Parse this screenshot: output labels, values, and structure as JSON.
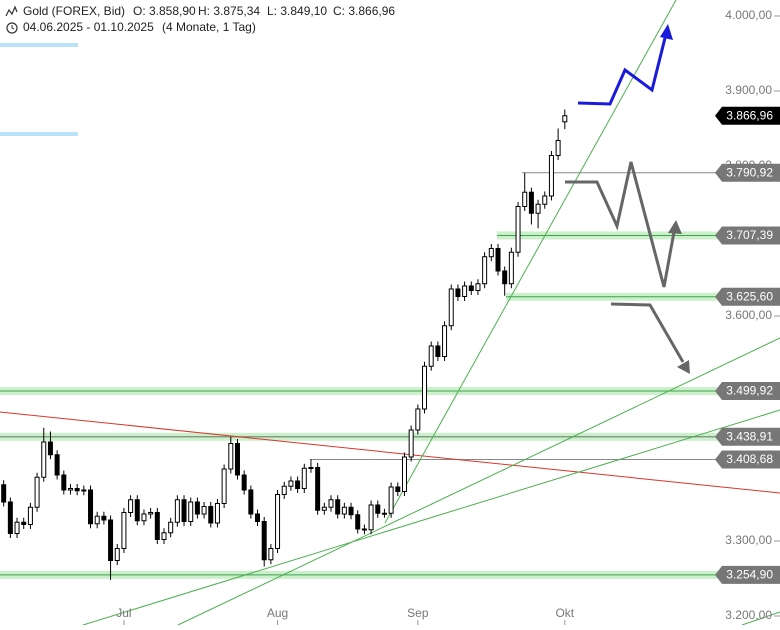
{
  "chart_data": {
    "type": "candlestick",
    "title": "Gold (FOREX, Bid)",
    "quote": [
      "O: 3.858,90",
      "H: 3.875,34",
      "L: 3.849,10",
      "C: 3.866,96"
    ],
    "date_range": "04.06.2025 - 01.10.2025",
    "period": "(4 Monate, 1 Tag)",
    "categories": [
      null,
      null,
      null,
      null,
      null,
      null,
      null,
      null,
      null,
      null,
      null,
      null,
      null,
      null,
      null,
      null,
      null,
      null,
      null,
      "Jul",
      null,
      null,
      null,
      null,
      null,
      null,
      null,
      null,
      null,
      null,
      null,
      null,
      null,
      null,
      null,
      null,
      null,
      null,
      null,
      null,
      null,
      null,
      "Aug",
      null,
      null,
      null,
      null,
      null,
      null,
      null,
      null,
      null,
      null,
      null,
      null,
      null,
      null,
      null,
      null,
      null,
      null,
      null,
      null,
      "Sep",
      null,
      null,
      null,
      null,
      null,
      null,
      null,
      null,
      null,
      null,
      null,
      null,
      null,
      null,
      null,
      null,
      null,
      null,
      null,
      null,
      null,
      "Okt"
    ],
    "open": [
      3390,
      3375,
      3352,
      3310,
      3325,
      3322,
      3345,
      3385,
      3432,
      3415,
      3388,
      3368,
      3370,
      3367,
      3368,
      3323,
      3333,
      3328,
      3274,
      3290,
      3338,
      3355,
      3327,
      3336,
      3338,
      3302,
      3311,
      3325,
      3355,
      3326,
      3352,
      3336,
      3346,
      3324,
      3350,
      3396,
      3430,
      3388,
      3368,
      3336,
      3326,
      3275,
      3290,
      3362,
      3373,
      3380,
      3370,
      3397,
      3398,
      3341,
      3345,
      3355,
      3336,
      3345,
      3335,
      3316,
      3315,
      3348,
      3337,
      3337,
      3372,
      3366,
      3412,
      3448,
      3476,
      3533,
      3560,
      3546,
      3587,
      3636,
      3626,
      3640,
      3634,
      3643,
      3679,
      3690,
      3660,
      3643,
      3685,
      3746,
      3765,
      3737,
      3749,
      3760,
      3814,
      3858.9
    ],
    "high": [
      3396,
      3381,
      3358,
      3331,
      3331,
      3351,
      3391,
      3451,
      3446,
      3421,
      3394,
      3376,
      3376,
      3374,
      3374,
      3339,
      3339,
      3334,
      3296,
      3344,
      3361,
      3361,
      3342,
      3344,
      3344,
      3317,
      3331,
      3361,
      3361,
      3358,
      3358,
      3352,
      3352,
      3356,
      3402,
      3439,
      3436,
      3394,
      3374,
      3342,
      3332,
      3296,
      3368,
      3379,
      3386,
      3386,
      3403,
      3409,
      3404,
      3351,
      3361,
      3361,
      3351,
      3351,
      3341,
      3322,
      3354,
      3354,
      3343,
      3378,
      3378,
      3418,
      3454,
      3482,
      3539,
      3566,
      3566,
      3593,
      3642,
      3642,
      3646,
      3646,
      3649,
      3685,
      3696,
      3696,
      3666,
      3691,
      3752,
      3791,
      3771,
      3755,
      3766,
      3820,
      3850,
      3875.34
    ],
    "low": [
      3369,
      3346,
      3304,
      3304,
      3316,
      3316,
      3339,
      3379,
      3409,
      3382,
      3362,
      3362,
      3361,
      3361,
      3317,
      3317,
      3322,
      3248,
      3268,
      3284,
      3332,
      3321,
      3321,
      3330,
      3296,
      3296,
      3305,
      3319,
      3320,
      3320,
      3330,
      3330,
      3318,
      3318,
      3344,
      3390,
      3382,
      3362,
      3330,
      3320,
      3266,
      3269,
      3284,
      3356,
      3367,
      3364,
      3364,
      3391,
      3335,
      3335,
      3339,
      3330,
      3330,
      3329,
      3310,
      3309,
      3309,
      3331,
      3331,
      3331,
      3360,
      3360,
      3406,
      3442,
      3470,
      3527,
      3540,
      3540,
      3581,
      3620,
      3620,
      3628,
      3628,
      3637,
      3673,
      3654,
      3627,
      3637,
      3679,
      3740,
      3722,
      3717,
      3743,
      3754,
      3808,
      3849.1
    ],
    "close": [
      3375,
      3352,
      3310,
      3325,
      3322,
      3345,
      3385,
      3432,
      3415,
      3388,
      3368,
      3370,
      3367,
      3368,
      3323,
      3333,
      3328,
      3274,
      3290,
      3338,
      3355,
      3327,
      3336,
      3338,
      3302,
      3311,
      3325,
      3355,
      3326,
      3352,
      3336,
      3346,
      3324,
      3350,
      3396,
      3430,
      3388,
      3368,
      3336,
      3326,
      3275,
      3290,
      3362,
      3373,
      3380,
      3370,
      3397,
      3398,
      3341,
      3345,
      3355,
      3336,
      3345,
      3335,
      3316,
      3315,
      3348,
      3337,
      3337,
      3372,
      3366,
      3412,
      3448,
      3476,
      3533,
      3560,
      3546,
      3587,
      3636,
      3626,
      3640,
      3634,
      3643,
      3679,
      3690,
      3660,
      3643,
      3685,
      3746,
      3765,
      3737,
      3749,
      3760,
      3814,
      3834,
      3866.96
    ],
    "ylim": [
      3188,
      4021.3
    ],
    "yticks": [
      {
        "value": 4000,
        "label": "4.000,00"
      },
      {
        "value": 3900,
        "label": "3.900,00"
      },
      {
        "value": 3800,
        "label": "3.800,00"
      },
      {
        "value": 3600,
        "label": "3.600,00"
      },
      {
        "value": 3300,
        "label": "3.300,00"
      },
      {
        "value": 3200,
        "label": "3.200,00"
      }
    ],
    "last_price": {
      "value": 3866.96,
      "label": "3.866,96"
    },
    "levels": [
      {
        "value": 3790.92,
        "label": "3.790,92",
        "kind": "line"
      },
      {
        "value": 3707.39,
        "label": "3.707,39",
        "kind": "band"
      },
      {
        "value": 3625.6,
        "label": "3.625,60",
        "kind": "band"
      },
      {
        "value": 3499.92,
        "label": "3.499,92",
        "kind": "band"
      },
      {
        "value": 3438.91,
        "label": "3.438,91",
        "kind": "band-line"
      },
      {
        "value": 3408.68,
        "label": "3.408,68",
        "kind": "line"
      },
      {
        "value": 3254.9,
        "label": "3.254,90",
        "kind": "band"
      }
    ],
    "up_color": "#ffffff",
    "down_color": "#000000"
  }
}
